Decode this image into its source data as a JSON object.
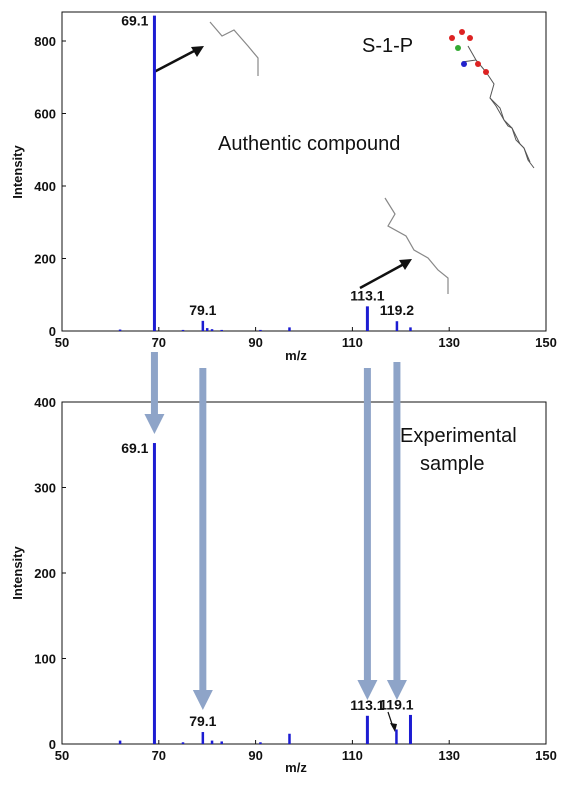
{
  "chart_data": [
    {
      "type": "bar",
      "annotations": [
        "S-1-P",
        "Authentic compound"
      ],
      "xlabel": "m/z",
      "ylabel": "Intensity",
      "xlim": [
        50,
        150
      ],
      "ylim": [
        0,
        880
      ],
      "xticks": [
        50,
        70,
        90,
        110,
        130,
        150
      ],
      "yticks": [
        0,
        200,
        400,
        600,
        800
      ],
      "grid": false,
      "x": [
        62,
        69.1,
        75,
        79.1,
        80,
        81,
        83,
        91,
        97,
        113.1,
        119.2,
        122
      ],
      "values": [
        4,
        870,
        3,
        28,
        8,
        5,
        3,
        3,
        10,
        68,
        27,
        10
      ],
      "peak_labels": [
        {
          "x": 69.1,
          "text": "69.1"
        },
        {
          "x": 79.1,
          "text": "79.1"
        },
        {
          "x": 113.1,
          "text": "113.1"
        },
        {
          "x": 119.2,
          "text": "119.2"
        }
      ],
      "color": "#1c1cd2"
    },
    {
      "type": "bar",
      "annotations": [
        "Experimental",
        "sample"
      ],
      "xlabel": "m/z",
      "ylabel": "Intensity",
      "xlim": [
        50,
        150
      ],
      "ylim": [
        0,
        400
      ],
      "xticks": [
        50,
        70,
        90,
        110,
        130,
        150
      ],
      "yticks": [
        0,
        100,
        200,
        300,
        400
      ],
      "grid": false,
      "x": [
        62,
        69.1,
        75,
        79.1,
        81,
        83,
        91,
        97,
        113.1,
        119.1,
        122
      ],
      "values": [
        4,
        352,
        2,
        14,
        4,
        3,
        2,
        12,
        33,
        17,
        34
      ],
      "peak_labels": [
        {
          "x": 69.1,
          "text": "69.1"
        },
        {
          "x": 79.1,
          "text": "79.1"
        },
        {
          "x": 113.1,
          "text": "113.1"
        },
        {
          "x": 119.1,
          "text": "119.1"
        }
      ],
      "color": "#1c1cd2"
    }
  ],
  "colors": {
    "bar": "#1c1cd2",
    "connector_arrow": "#8ea4c8",
    "axis": "#111111"
  }
}
